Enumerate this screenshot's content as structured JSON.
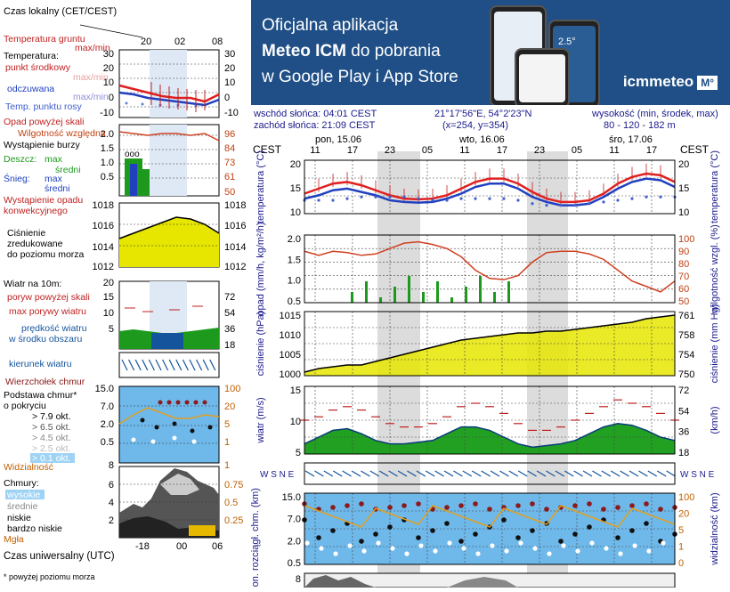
{
  "banner": {
    "line1": "Oficjalna aplikacja",
    "line2_bold": "Meteo ICM",
    "line2_rest": " do pobrania",
    "line3": "w Google Play i App Store",
    "brand": "icmmeteo",
    "brand_mark": "M°",
    "phone_temp": "2.5°"
  },
  "header": {
    "sunrise": "wschód słońca: 04:01 CEST",
    "sunset": "zachód słońca: 21:09 CEST",
    "coords": "21°17'56\"E, 54°2'23\"N",
    "grid": "(x=254, y=354)",
    "height_label": "wysokość (min, środek, max)",
    "height_values": "80 - 120 - 182 m"
  },
  "legend": {
    "local_time": "Czas lokalny (CET/CEST)",
    "local_ticks": [
      "20",
      "02",
      "08"
    ],
    "utc_time": "Czas uniwersalny (UTC)",
    "utc_ticks": [
      "-18",
      "00",
      "06"
    ],
    "footnote": "* powyżej poziomu morza",
    "temp": {
      "ground": "Temperatura gruntu",
      "ground_mm": "max/min",
      "title": "Temperatura:",
      "mid": "punkt środkowy",
      "mid_mm": "max/min",
      "feels": "odczuwana",
      "feels_mm": "max/min",
      "dew": "Temp. punktu rosy",
      "ticks": [
        "30",
        "20",
        "10",
        "0",
        "-10"
      ]
    },
    "precip": {
      "opad": "Opad powyżej skali",
      "hum": "Wilgotność względna",
      "storm": "Wystąpienie burzy",
      "rain": "Deszcz:",
      "rain_max": "max",
      "rain_mid": "średni",
      "snow": "Śnieg:",
      "snow_max": "max",
      "snow_mid": "średni",
      "occ": "Wystąpienie opadu konwekcyjnego",
      "ticks_left": [
        "2.0",
        "1.5",
        "1.0",
        "0.5"
      ],
      "ticks_right": [
        "96",
        "84",
        "73",
        "61",
        "50"
      ]
    },
    "pressure": {
      "label": "Ciśnienie zredukowane do poziomu morza",
      "ticks": [
        "1018",
        "1016",
        "1014",
        "1012"
      ]
    },
    "wind": {
      "title": "Wiatr na 10m:",
      "gust_over": "poryw powyżej skali",
      "gust": "max porywy wiatru",
      "speed": "prędkość wiatru w środku obszaru",
      "ticks_left": [
        "20",
        "15",
        "10",
        "5"
      ],
      "ticks_right": [
        "72",
        "54",
        "36",
        "18"
      ],
      "dir": "kierunek wiatru"
    },
    "cloud_base": {
      "top": "Wierzchołek chmur",
      "title": "Podstawa chmur* o pokryciu",
      "o1": "> 7.9 okt.",
      "o2": "> 6.5 okt.",
      "o3": "> 4.5 okt.",
      "o4": "> 2.5 okt.",
      "o5": "> 0.1 okt.",
      "vis": "Widzialność",
      "ticks_left": [
        "15.0",
        "7.0",
        "2.0",
        "0.5"
      ],
      "ticks_right": [
        "100",
        "20",
        "5",
        "1"
      ],
      "bottom_left": "8",
      "bottom_right": "1"
    },
    "clouds": {
      "title": "Chmury:",
      "high": "wysokie",
      "mid": "średnie",
      "low": "niskie",
      "vlow": "bardzo niskie",
      "fog": "Mgła",
      "ticks_left": [
        "6",
        "4",
        "2"
      ],
      "ticks_right": [
        "0.75",
        "0.5",
        "0.25"
      ]
    }
  },
  "forecast": {
    "cest": "CEST",
    "days": [
      "pon, 15.06",
      "wto, 16.06",
      "śro, 17.06"
    ],
    "hour_ticks": [
      "11",
      "17",
      "23",
      "05",
      "11",
      "17",
      "23",
      "05",
      "11",
      "17"
    ],
    "temp": {
      "label": "temperatura (°C)",
      "ticks": [
        "20",
        "15",
        "10"
      ],
      "values": [
        12,
        13.5,
        15,
        15.5,
        14.5,
        13,
        11.5,
        10.5,
        10.3,
        10.5,
        11.5,
        13.5,
        15.5,
        16.5,
        16.5,
        15,
        12.5,
        10.5,
        9.5,
        9.5,
        10,
        12,
        15,
        17,
        18,
        17.5,
        15.5
      ],
      "feels": [
        10.5,
        11.5,
        13,
        13.5,
        12.5,
        11.5,
        10,
        9.5,
        9.3,
        9.5,
        10.5,
        12,
        14,
        15,
        15,
        13.5,
        11,
        9.5,
        8.5,
        8.5,
        9,
        11,
        13.5,
        15.5,
        16.5,
        16,
        14
      ],
      "dew": [
        10,
        10,
        10,
        10.5,
        11,
        11,
        11,
        11,
        10.5,
        10,
        10,
        10.5,
        10.5,
        10.5,
        10.5,
        10,
        9,
        8.5,
        8.5,
        8.5,
        9,
        9.5,
        10,
        10.5,
        11,
        11,
        11
      ]
    },
    "precip": {
      "label": "opad (mm/h, kg/m²/h)",
      "right_label": "wilgotność wzgl. (%)",
      "ticks_left": [
        "2.0",
        "1.5",
        "1.0",
        "0.5"
      ],
      "ticks_right": [
        "100",
        "90",
        "80",
        "70",
        "60",
        "50"
      ],
      "humidity": [
        88,
        85,
        88,
        87,
        85,
        86,
        90,
        94,
        95,
        93,
        90,
        84,
        74,
        68,
        67,
        70,
        80,
        87,
        88,
        88,
        86,
        82,
        74,
        66,
        62,
        58,
        66
      ]
    },
    "pressure": {
      "label": "ciśnienie (hPa)",
      "right_label": "ciśnienie (mm Hg)",
      "ticks_left": [
        "1015",
        "1010",
        "1005",
        "1000"
      ],
      "ticks_right": [
        "761",
        "758",
        "754",
        "750"
      ],
      "values": [
        1001,
        1002,
        1002.5,
        1003,
        1003,
        1004,
        1005,
        1006,
        1007,
        1008,
        1009,
        1010,
        1010.5,
        1011,
        1011.5,
        1012,
        1012,
        1012.5,
        1012.5,
        1013,
        1013.5,
        1014,
        1014.5,
        1015,
        1016,
        1016.5,
        1017
      ]
    },
    "wind": {
      "label": "wiatr (m/s)",
      "right_label": "(km/h)",
      "ticks_left": [
        "15",
        "10",
        "5"
      ],
      "ticks_right": [
        "72",
        "54",
        "36",
        "18"
      ],
      "speed": [
        3,
        5,
        7,
        7.5,
        6,
        4,
        3,
        3,
        3.5,
        4,
        6,
        8,
        8,
        7,
        5,
        3,
        2,
        2.5,
        3,
        4,
        6,
        8,
        9,
        8.5,
        7,
        5,
        4
      ],
      "gust": [
        10,
        11,
        13,
        14,
        13,
        11,
        9,
        8,
        8,
        9,
        11,
        14,
        15,
        14,
        12,
        9,
        7,
        7,
        8,
        10,
        12,
        14,
        16,
        15,
        14,
        12,
        10
      ]
    },
    "dir_label": "W S N E",
    "cloud_base": {
      "label": "pion. rozciągł. chm. (km)",
      "right_label": "widzialność (km)",
      "ticks_left": [
        "15.0",
        "7.0",
        "2.0",
        "0.5"
      ],
      "ticks_right": [
        "100",
        "20",
        "5",
        "1",
        "0"
      ],
      "bottom_left": "8"
    }
  },
  "colors": {
    "temp": "#e02020",
    "feels": "#2040c0",
    "dew": "#4060d0",
    "humidity": "#d04020",
    "pressure_fill": "#e6e600",
    "wind_fill": "#22a022",
    "gust": "#c02020",
    "night_band": "#dcdcdc",
    "sky": "#6fb8ea"
  }
}
